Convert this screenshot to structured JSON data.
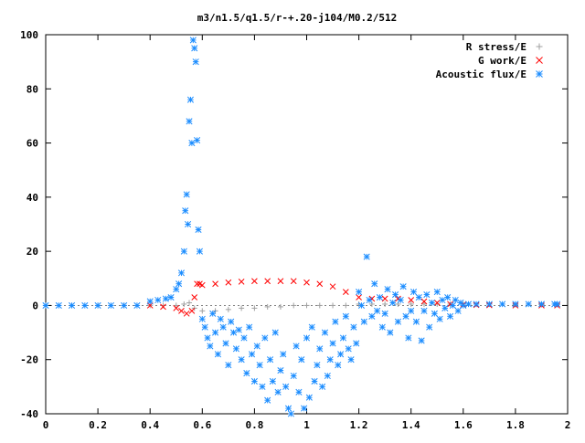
{
  "chart_data": {
    "type": "scatter",
    "title": "m3/n1.5/q1.5/r-+.20-j104/M0.2/512",
    "xlim": [
      0,
      2
    ],
    "ylim": [
      -40,
      100
    ],
    "xticks": [
      0,
      0.2,
      0.4,
      0.6,
      0.8,
      1,
      1.2,
      1.4,
      1.6,
      1.8,
      2
    ],
    "xtick_labels": [
      "0",
      "0.2",
      "0.4",
      "0.6",
      "0.8",
      "1",
      "1.2",
      "1.4",
      "1.6",
      "1.8",
      "2"
    ],
    "yticks": [
      -40,
      -20,
      0,
      20,
      40,
      60,
      80,
      100
    ],
    "ytick_labels": [
      "-40",
      "-20",
      "0",
      "20",
      "40",
      "60",
      "80",
      "100"
    ],
    "grid": false,
    "legend_position": "top-right",
    "series": [
      {
        "name": "R stress/E",
        "marker": "plus",
        "color": "#a0a0a0",
        "x": [
          0.0,
          0.1,
          0.2,
          0.3,
          0.4,
          0.45,
          0.5,
          0.53,
          0.55,
          0.57,
          0.6,
          0.65,
          0.7,
          0.75,
          0.8,
          0.85,
          0.9,
          0.95,
          1.0,
          1.05,
          1.1,
          1.15,
          1.2,
          1.25,
          1.3,
          1.35,
          1.4,
          1.45,
          1.5,
          1.55,
          1.6,
          1.7,
          1.8,
          1.9,
          1.96
        ],
        "y": [
          0,
          0,
          0,
          0,
          0,
          0,
          0,
          0.5,
          1,
          -1,
          -2,
          -2,
          -1.5,
          -1,
          -1,
          -0.5,
          -0.5,
          0,
          0,
          0,
          0,
          0,
          0.5,
          0.5,
          0.5,
          0.5,
          0.5,
          0.5,
          0.5,
          0.5,
          0.5,
          0.5,
          0.3,
          0.3,
          0.3
        ]
      },
      {
        "name": "G work/E",
        "marker": "cross",
        "color": "#ff0000",
        "x": [
          0.4,
          0.45,
          0.5,
          0.52,
          0.54,
          0.56,
          0.57,
          0.58,
          0.59,
          0.6,
          0.65,
          0.7,
          0.75,
          0.8,
          0.85,
          0.9,
          0.95,
          1.0,
          1.05,
          1.1,
          1.15,
          1.2,
          1.25,
          1.3,
          1.35,
          1.4,
          1.45,
          1.5,
          1.55,
          1.6,
          1.65,
          1.7,
          1.8,
          1.9,
          1.96
        ],
        "y": [
          0,
          -0.5,
          -1,
          -2,
          -3,
          -2,
          3,
          8,
          8,
          7.5,
          8,
          8.5,
          8.8,
          9,
          9,
          9,
          9,
          8.5,
          8,
          7,
          5,
          3,
          2.5,
          2.5,
          2.5,
          2,
          1.5,
          1,
          0.5,
          0.3,
          0.2,
          0.1,
          0,
          0,
          0
        ]
      },
      {
        "name": "Acoustic flux/E",
        "marker": "star",
        "color": "#1a8cff",
        "x": [
          0.0,
          0.05,
          0.1,
          0.15,
          0.2,
          0.25,
          0.3,
          0.35,
          0.4,
          0.43,
          0.46,
          0.48,
          0.5,
          0.51,
          0.52,
          0.53,
          0.535,
          0.54,
          0.545,
          0.55,
          0.555,
          0.56,
          0.565,
          0.57,
          0.575,
          0.58,
          0.585,
          0.59,
          0.6,
          0.61,
          0.62,
          0.63,
          0.64,
          0.65,
          0.66,
          0.67,
          0.68,
          0.69,
          0.7,
          0.71,
          0.72,
          0.73,
          0.74,
          0.75,
          0.76,
          0.77,
          0.78,
          0.79,
          0.8,
          0.81,
          0.82,
          0.83,
          0.84,
          0.85,
          0.86,
          0.87,
          0.88,
          0.89,
          0.9,
          0.91,
          0.92,
          0.93,
          0.94,
          0.95,
          0.96,
          0.97,
          0.98,
          0.99,
          1.0,
          1.01,
          1.02,
          1.03,
          1.04,
          1.05,
          1.06,
          1.07,
          1.08,
          1.09,
          1.1,
          1.11,
          1.12,
          1.13,
          1.14,
          1.15,
          1.16,
          1.17,
          1.18,
          1.19,
          1.2,
          1.21,
          1.22,
          1.23,
          1.24,
          1.25,
          1.26,
          1.27,
          1.28,
          1.29,
          1.3,
          1.31,
          1.32,
          1.33,
          1.34,
          1.35,
          1.36,
          1.37,
          1.38,
          1.39,
          1.4,
          1.41,
          1.42,
          1.43,
          1.44,
          1.45,
          1.46,
          1.47,
          1.48,
          1.49,
          1.5,
          1.51,
          1.52,
          1.53,
          1.54,
          1.55,
          1.56,
          1.57,
          1.58,
          1.59,
          1.6,
          1.62,
          1.65,
          1.7,
          1.75,
          1.8,
          1.85,
          1.9,
          1.95,
          1.96
        ],
        "y": [
          0,
          0,
          0,
          0,
          0,
          0,
          0,
          0,
          1.5,
          2,
          2.5,
          3,
          6,
          8,
          12,
          20,
          35,
          41,
          30,
          68,
          76,
          60,
          98,
          95,
          90,
          61,
          28,
          20,
          -5,
          -8,
          -12,
          -15,
          -3,
          -10,
          -18,
          -5,
          -8,
          -14,
          -22,
          -6,
          -10,
          -16,
          -9,
          -20,
          -12,
          -25,
          -8,
          -18,
          -28,
          -15,
          -22,
          -30,
          -12,
          -35,
          -20,
          -28,
          -10,
          -32,
          -24,
          -18,
          -30,
          -38,
          -40,
          -26,
          -15,
          -32,
          -20,
          -38,
          -12,
          -34,
          -8,
          -28,
          -22,
          -16,
          -30,
          -10,
          -26,
          -20,
          -14,
          -6,
          -22,
          -18,
          -12,
          -4,
          -16,
          -20,
          -8,
          -14,
          5,
          0,
          -6,
          18,
          2,
          -4,
          8,
          -2,
          3,
          -8,
          -3,
          6,
          -10,
          1,
          4,
          -6,
          2,
          7,
          -4,
          -12,
          -2,
          5,
          -6,
          3,
          -13,
          -2,
          4,
          -8,
          1,
          -3,
          5,
          -5,
          2,
          -1,
          3,
          -4,
          0,
          2,
          -2,
          1,
          0,
          0.5,
          0.5,
          0.5,
          0.5,
          0.5,
          0.5,
          0.5,
          0.5,
          0.5
        ]
      }
    ]
  }
}
